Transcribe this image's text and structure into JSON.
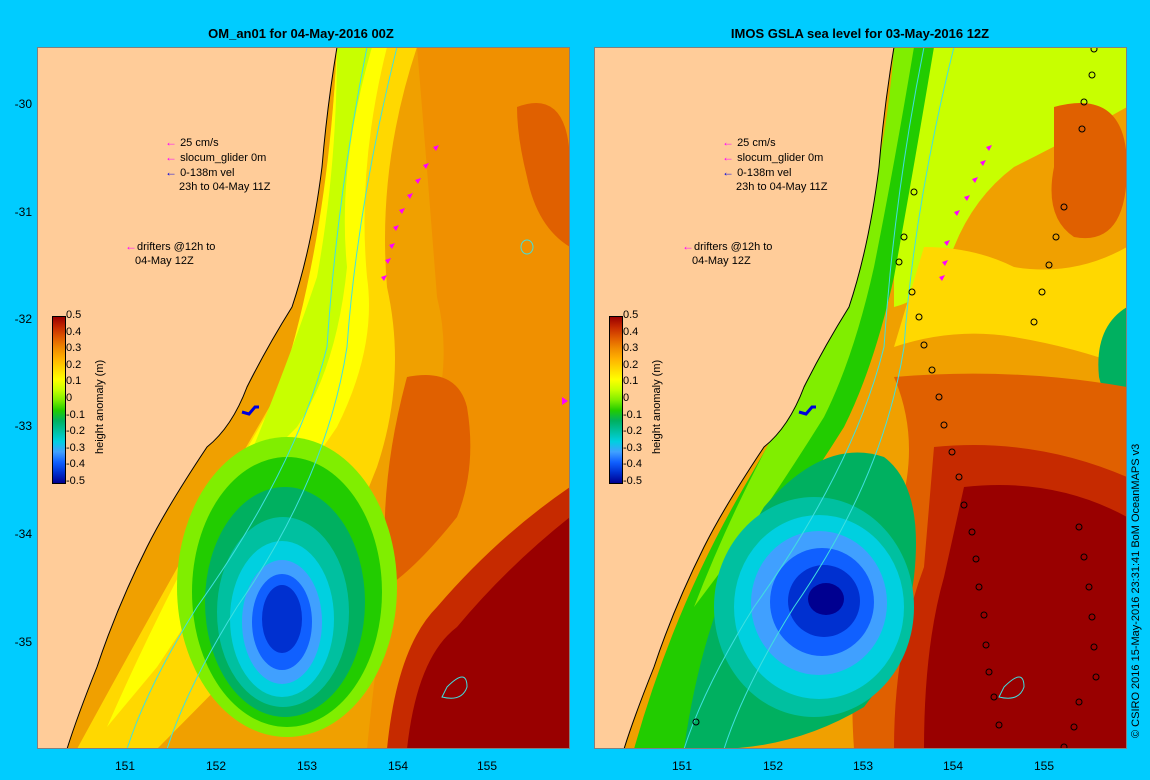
{
  "panels": [
    {
      "title": "OM_an01 for 04-May-2016 00Z",
      "legend": {
        "scale_label": "25 cm/s",
        "glider_label": "slocum_glider 0m",
        "vel_label": "0-138m vel",
        "time_label": "23h to 04-May 11Z",
        "drifters_label": "drifters @12h to",
        "drifters_time": "04-May 12Z"
      }
    },
    {
      "title": "IMOS GSLA sea level  for 03-May-2016 12Z",
      "legend": {
        "scale_label": "25 cm/s",
        "glider_label": "slocum_glider 0m",
        "vel_label": "0-138m vel",
        "time_label": "23h to 04-May 11Z",
        "drifters_label": "drifters @12h to",
        "drifters_time": "04-May 12Z"
      }
    }
  ],
  "axes": {
    "y_ticks": [
      "-30",
      "-31",
      "-32",
      "-33",
      "-34",
      "-35"
    ],
    "x_ticks": [
      "151",
      "152",
      "153",
      "154",
      "155"
    ]
  },
  "colorbar": {
    "title": "height anomaly (m)",
    "ticks": [
      "0.5",
      "0.4",
      "0.3",
      "0.2",
      "0.1",
      "0",
      "-0.1",
      "-0.2",
      "-0.3",
      "-0.4",
      "-0.5"
    ],
    "colors": [
      "#990000",
      "#c62a00",
      "#e05a00",
      "#f08a00",
      "#ffb000",
      "#ffd800",
      "#ffff00",
      "#c8ff00",
      "#80ee00",
      "#22cc00",
      "#00b060",
      "#00c0a0",
      "#00d0e0",
      "#40a0ff",
      "#1060ff",
      "#0030d0",
      "#000090"
    ]
  },
  "colors": {
    "land": "#ffcc99",
    "frame": "#00ccff",
    "contour": "#40e0e0",
    "glider": "#0000dd",
    "drifter": "#ff00ff"
  },
  "credit": "© CSIRO 2016  15-May-2016 23:31:41 BoM OceanMAPS v3"
}
